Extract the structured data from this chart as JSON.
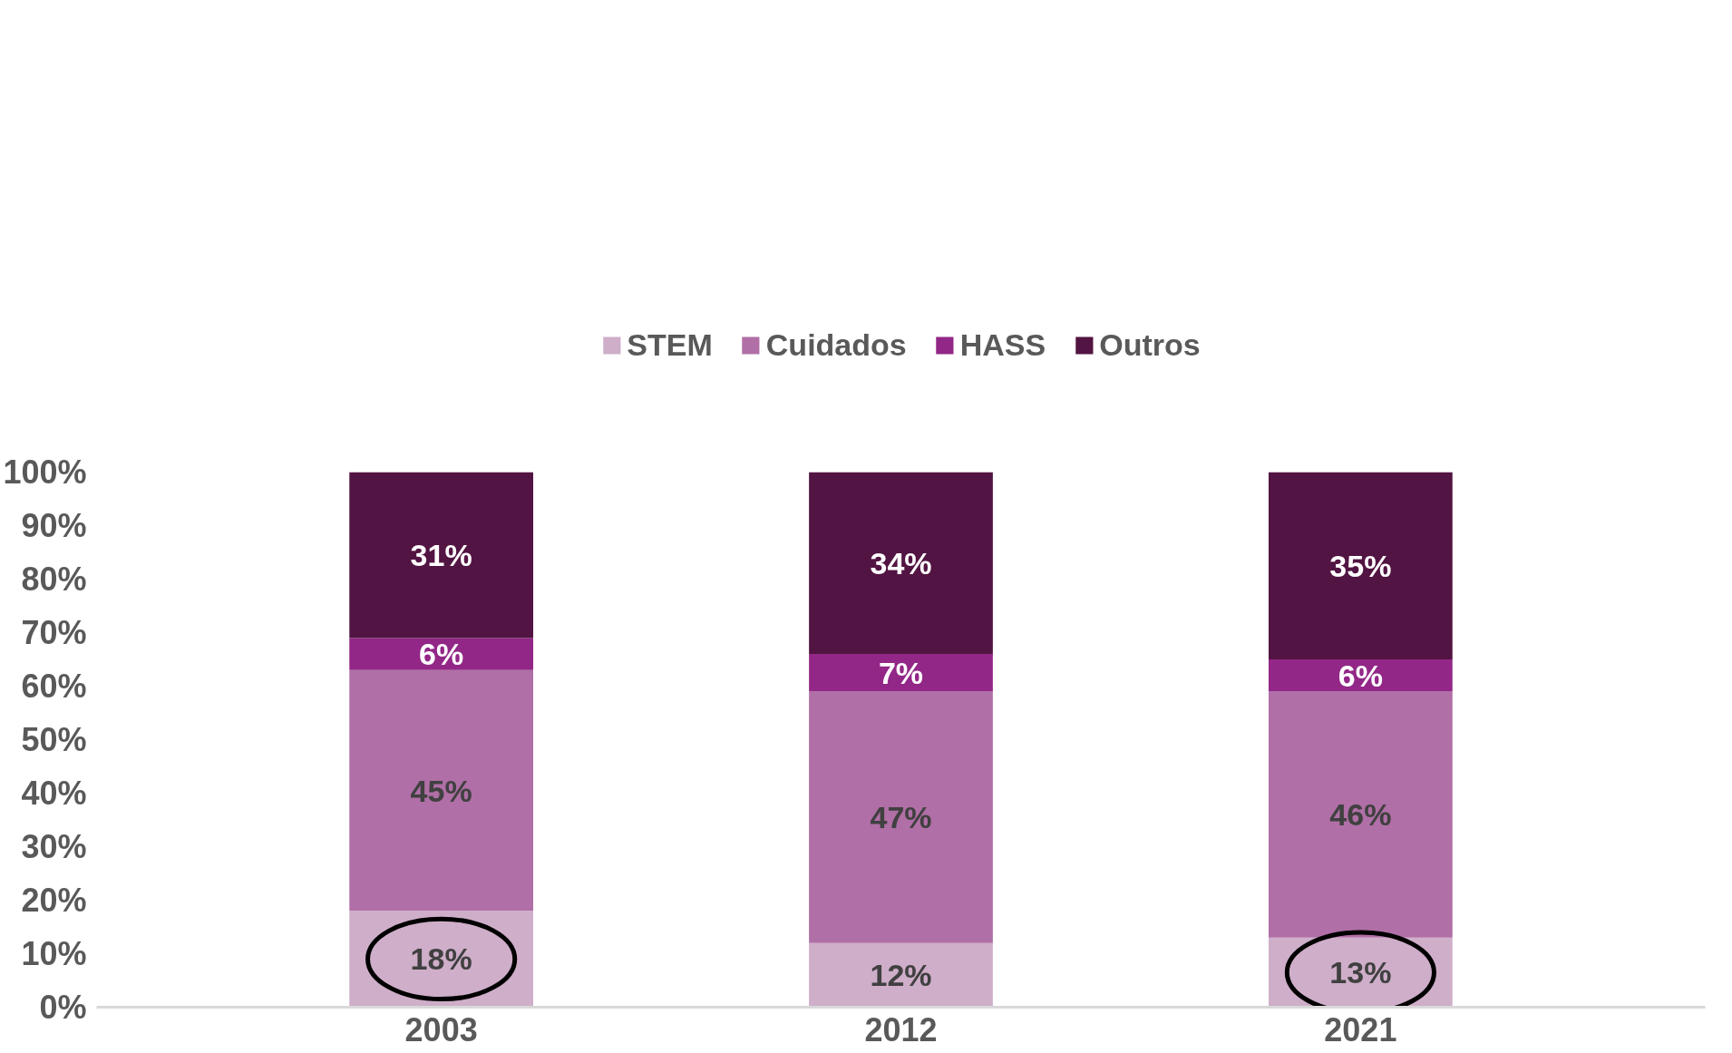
{
  "chart_data": {
    "type": "bar",
    "stacked": true,
    "categories": [
      "2003",
      "2012",
      "2021"
    ],
    "series": [
      {
        "name": "STEM",
        "color": "#cfaec9",
        "values": [
          18,
          12,
          13
        ],
        "value_labels": [
          "18%",
          "12%",
          "13%"
        ]
      },
      {
        "name": "Cuidados",
        "color": "#b06fa6",
        "values": [
          45,
          47,
          46
        ],
        "value_labels": [
          "45%",
          "47%",
          "46%"
        ]
      },
      {
        "name": "HASS",
        "color": "#922787",
        "values": [
          6,
          7,
          6
        ],
        "value_labels": [
          "6%",
          "7%",
          "6%"
        ]
      },
      {
        "name": "Outros",
        "color": "#521442",
        "values": [
          31,
          34,
          35
        ],
        "value_labels": [
          "31%",
          "34%",
          "35%"
        ]
      }
    ],
    "ylim": [
      0,
      100
    ],
    "yticks": [
      {
        "value": 0,
        "label": "0%"
      },
      {
        "value": 10,
        "label": "10%"
      },
      {
        "value": 20,
        "label": "20%"
      },
      {
        "value": 30,
        "label": "30%"
      },
      {
        "value": 40,
        "label": "40%"
      },
      {
        "value": 50,
        "label": "50%"
      },
      {
        "value": 60,
        "label": "60%"
      },
      {
        "value": 70,
        "label": "70%"
      },
      {
        "value": 80,
        "label": "80%"
      },
      {
        "value": 90,
        "label": "90%"
      },
      {
        "value": 100,
        "label": "100%"
      }
    ],
    "grid": false,
    "legend": "top"
  }
}
